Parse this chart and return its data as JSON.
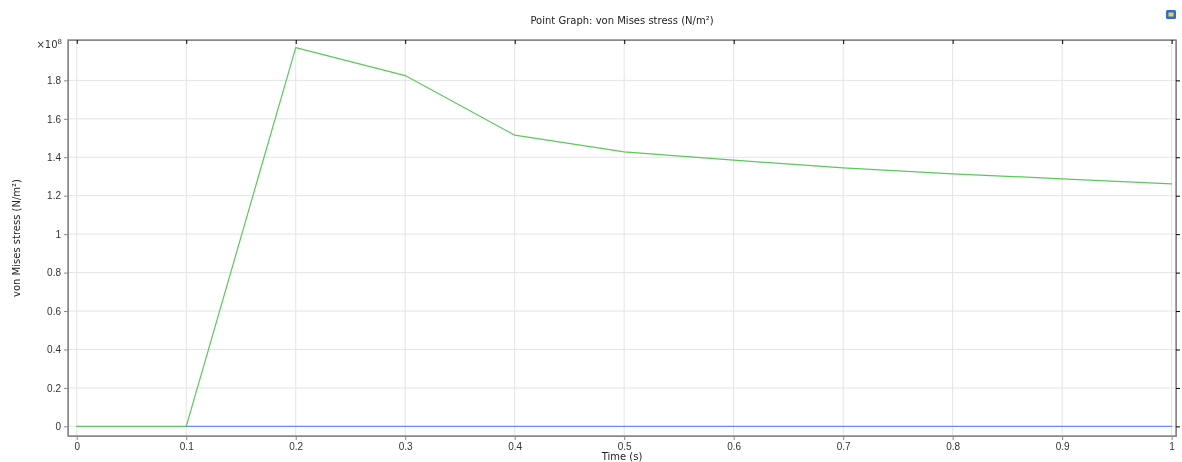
{
  "chart_data": {
    "type": "line",
    "title": "Point Graph: von Mises stress (N/m²)",
    "xlabel": "Time (s)",
    "ylabel": "von Mises stress (N/m²)",
    "annotations": [
      "×10$^{8}$"
    ],
    "series": [
      {
        "color": "#5cc85c",
        "x": [
          0,
          0.1,
          0.2,
          0.3,
          0.4,
          0.5,
          0.6,
          0.7,
          0.8,
          0.9,
          1.0
        ],
        "values": [
          0,
          0,
          1.97,
          1.825,
          1.515,
          1.428,
          1.385,
          1.345,
          1.314,
          1.288,
          1.262
        ]
      },
      {
        "color": "#6a8cf0",
        "x": [
          0.1,
          0.2,
          0.3,
          0.4,
          0.5,
          0.6,
          0.7,
          0.8,
          0.9,
          1.0
        ],
        "values": [
          0,
          0,
          0,
          0,
          0,
          0,
          0,
          0,
          0,
          0
        ]
      }
    ],
    "xlim": [
      -0.008,
      1.004
    ],
    "xticks": [
      0,
      0.1,
      0.2,
      0.3,
      0.4,
      0.5,
      0.6,
      0.7,
      0.8,
      0.9,
      1
    ],
    "ylim": [
      -0.05,
      2.01
    ],
    "yticks": [
      0,
      0.2,
      0.4,
      0.6,
      0.8,
      1,
      1.2,
      1.4,
      1.6,
      1.8
    ],
    "grid": true
  }
}
